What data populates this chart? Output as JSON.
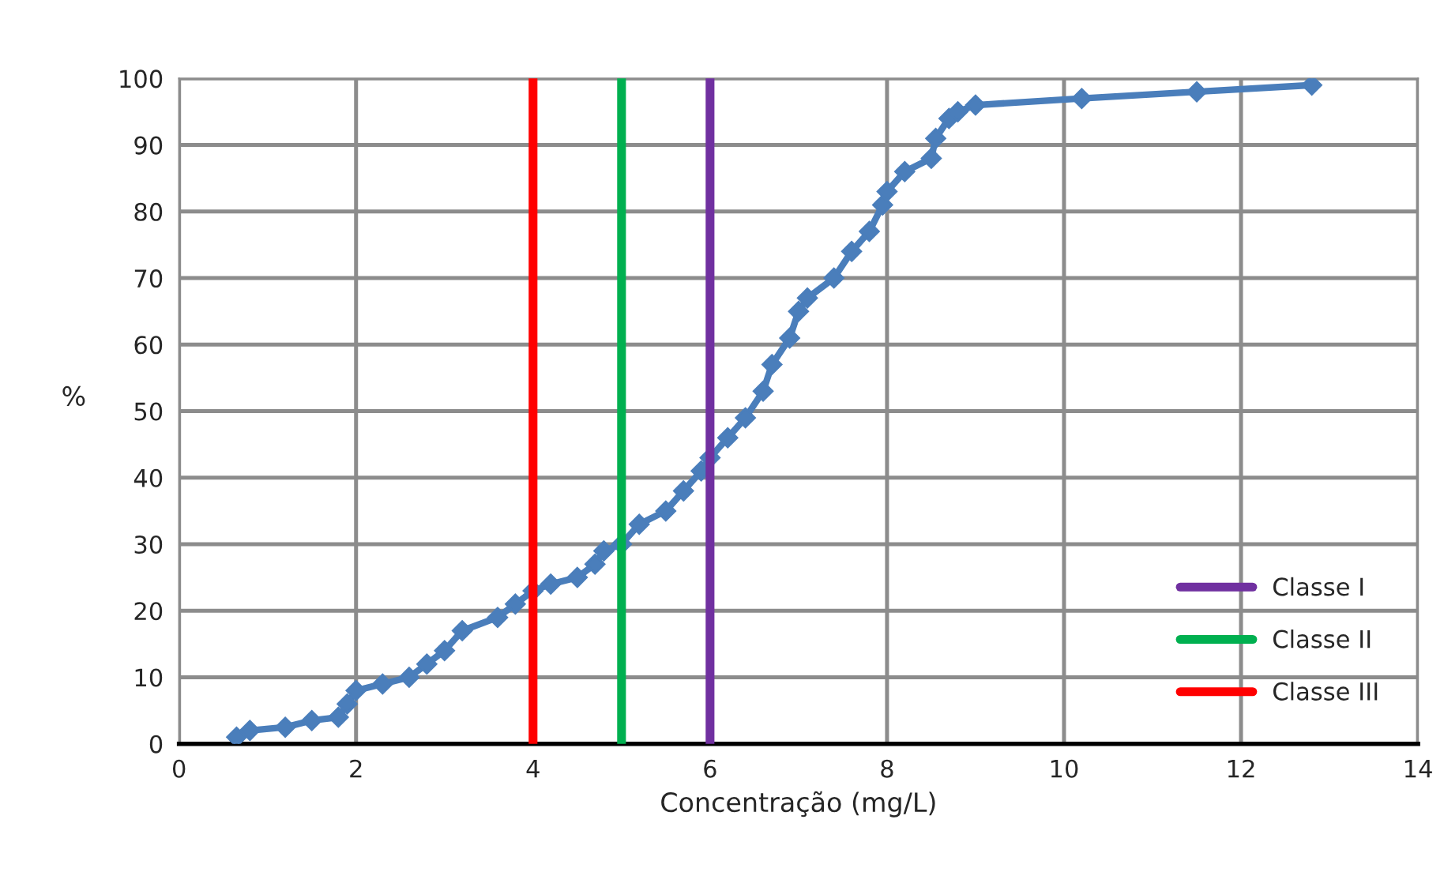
{
  "chart_data": {
    "type": "line",
    "xlabel": "Concentração (mg/L)",
    "ylabel": "%",
    "x": [
      0.65,
      0.8,
      1.2,
      1.5,
      1.8,
      1.9,
      2.0,
      2.3,
      2.6,
      2.8,
      3.0,
      3.2,
      3.6,
      3.8,
      4.0,
      4.2,
      4.5,
      4.7,
      4.8,
      5.0,
      5.2,
      5.5,
      5.7,
      5.9,
      6.0,
      6.2,
      6.4,
      6.6,
      6.7,
      6.9,
      7.0,
      7.1,
      7.4,
      7.6,
      7.8,
      7.95,
      8.0,
      8.2,
      8.5,
      8.55,
      8.7,
      8.8,
      9.0,
      10.2,
      11.5,
      12.8
    ],
    "series": [
      {
        "color": "#4a7ebb",
        "values": [
          1,
          2,
          2.5,
          3.5,
          4,
          6,
          8,
          9,
          10,
          12,
          14,
          17,
          19,
          21,
          23,
          24,
          25,
          27,
          29,
          30,
          33,
          35,
          38,
          41,
          43,
          46,
          49,
          53,
          57,
          61,
          65,
          67,
          70,
          74,
          77,
          81,
          83,
          86,
          88,
          91,
          94,
          95,
          96,
          97,
          98,
          99
        ]
      },
      {
        "name": "Classe I",
        "color": "#7030a0",
        "x": [
          6,
          6
        ],
        "values": [
          0,
          100
        ],
        "marker": "none"
      },
      {
        "name": "Classe II",
        "color": "#00b050",
        "x": [
          5,
          5
        ],
        "values": [
          0,
          100
        ],
        "marker": "none"
      },
      {
        "name": "Classe III",
        "color": "#ff0000",
        "x": [
          4,
          4
        ],
        "values": [
          0,
          100
        ],
        "marker": "none"
      }
    ],
    "xlim": [
      0,
      14
    ],
    "xticks": [
      0,
      2,
      4,
      6,
      8,
      10,
      12,
      14
    ],
    "ylim": [
      0,
      100
    ],
    "yticks": [
      0,
      10,
      20,
      30,
      40,
      50,
      60,
      70,
      80,
      90,
      100
    ],
    "grid": true,
    "legend": "bottom right",
    "marker": "diamond",
    "line_style": "solid"
  }
}
